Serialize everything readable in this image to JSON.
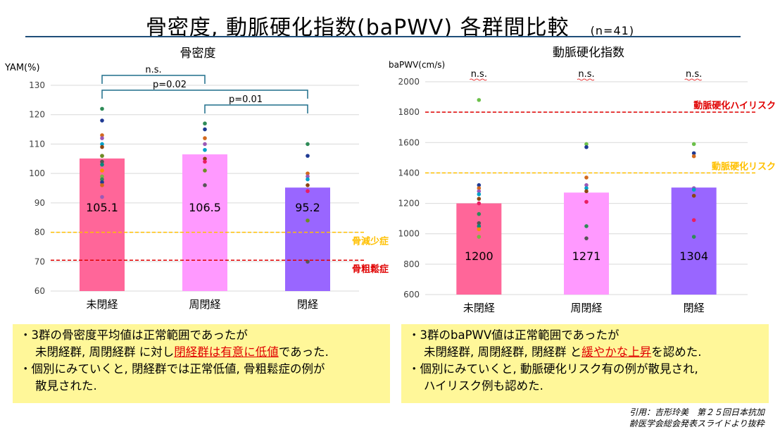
{
  "title": "骨密度, 動脈硬化指数(baPWV) 各群間比較",
  "title_n": "(n=41)",
  "chart_data": [
    {
      "type": "bar",
      "title": "骨密度",
      "ylabel": "YAM(%)",
      "ylim": [
        60,
        130
      ],
      "yticks": [
        60,
        70,
        80,
        90,
        100,
        110,
        120,
        130
      ],
      "categories": [
        "未閉経",
        "周閉経",
        "閉経"
      ],
      "values": [
        105.1,
        106.5,
        95.2
      ],
      "value_labels": [
        "105.1",
        "106.5",
        "95.2"
      ],
      "bar_colors": [
        "#ff6699",
        "#ff99ff",
        "#9966ff"
      ],
      "points": [
        [
          122,
          118,
          113,
          112,
          110,
          109,
          106,
          106,
          104,
          103,
          101,
          99,
          98,
          97,
          96,
          92
        ],
        [
          117,
          115,
          112,
          110,
          108,
          105,
          104,
          101,
          96
        ],
        [
          110,
          106,
          100,
          99,
          98,
          96,
          94,
          84,
          70
        ]
      ],
      "point_colors": [
        "#2e8b57",
        "#1f3a93",
        "#d2691e",
        "#9b59b6",
        "#00a0c8",
        "#8b4513",
        "#e91e63",
        "#6b8e23",
        "#555555",
        "#00897b",
        "#ff8c00",
        "#7cb342"
      ],
      "reference_lines": [
        {
          "value": 80,
          "label": "骨減少症",
          "color": "#ffc000"
        },
        {
          "value": 70.5,
          "label": "骨粗鬆症",
          "color": "#e00000"
        }
      ],
      "significance": [
        {
          "from": 0,
          "to": 1,
          "label": "n.s."
        },
        {
          "from": 0,
          "to": 2,
          "label": "p=0.02"
        },
        {
          "from": 1,
          "to": 2,
          "label": "p=0.01"
        }
      ]
    },
    {
      "type": "bar",
      "title": "動脈硬化指数",
      "ylabel": "baPWV(cm/s)",
      "ylim": [
        600,
        2000
      ],
      "yticks": [
        600,
        800,
        1000,
        1200,
        1400,
        1600,
        1800,
        2000
      ],
      "categories": [
        "未閉経",
        "周閉経",
        "閉経"
      ],
      "values": [
        1200,
        1271,
        1304
      ],
      "value_labels": [
        "1200",
        "1271",
        "1304"
      ],
      "bar_colors": [
        "#ff6699",
        "#ff99ff",
        "#9966ff"
      ],
      "points": [
        [
          1880,
          1320,
          1300,
          1280,
          1260,
          1230,
          1200,
          1130,
          1070,
          1050,
          1030,
          980
        ],
        [
          1590,
          1570,
          1370,
          1320,
          1300,
          1280,
          1210,
          1050,
          970
        ],
        [
          1590,
          1530,
          1510,
          1300,
          1290,
          1250,
          1090,
          980
        ]
      ],
      "point_colors": [
        "#6cc04a",
        "#1f3a93",
        "#d2691e",
        "#9b59b6",
        "#00a0c8",
        "#8b4513",
        "#e91e63",
        "#2e8b57",
        "#555555",
        "#00897b",
        "#ff8c00",
        "#7cb342"
      ],
      "reference_lines": [
        {
          "value": 1800,
          "label": "動脈硬化ハイリスク",
          "color": "#e00000"
        },
        {
          "value": 1400,
          "label": "動脈硬化リスク",
          "color": "#ffc000"
        }
      ],
      "group_labels": [
        "n.s.",
        "n.s.",
        "n.s."
      ]
    }
  ],
  "notes_left": {
    "line1": "・3群の骨密度平均値は正常範囲であったが",
    "line2_a": "未閉経群, 周閉経群 に対し",
    "line2_hl": "閉経群は有意に低値",
    "line2_b": "であった.",
    "line3": "・個別にみていくと, 閉経群では正常低値, 骨粗鬆症の例が",
    "line4": "散見された."
  },
  "notes_right": {
    "line1": "・3群のbaPWV値は正常範囲であったが",
    "line2_a": "未閉経群, 周閉経群, 閉経群 と",
    "line2_hl": "緩やかな上昇",
    "line2_b": "を認めた.",
    "line3": "・個別にみていくと, 動脈硬化リスク有の例が散見され,",
    "line4": "ハイリスク例も認めた."
  },
  "citation": {
    "line1": "引用：吉形玲美　第２５回日本抗加",
    "line2": "齢医学会総会発表スライドより抜粋"
  }
}
